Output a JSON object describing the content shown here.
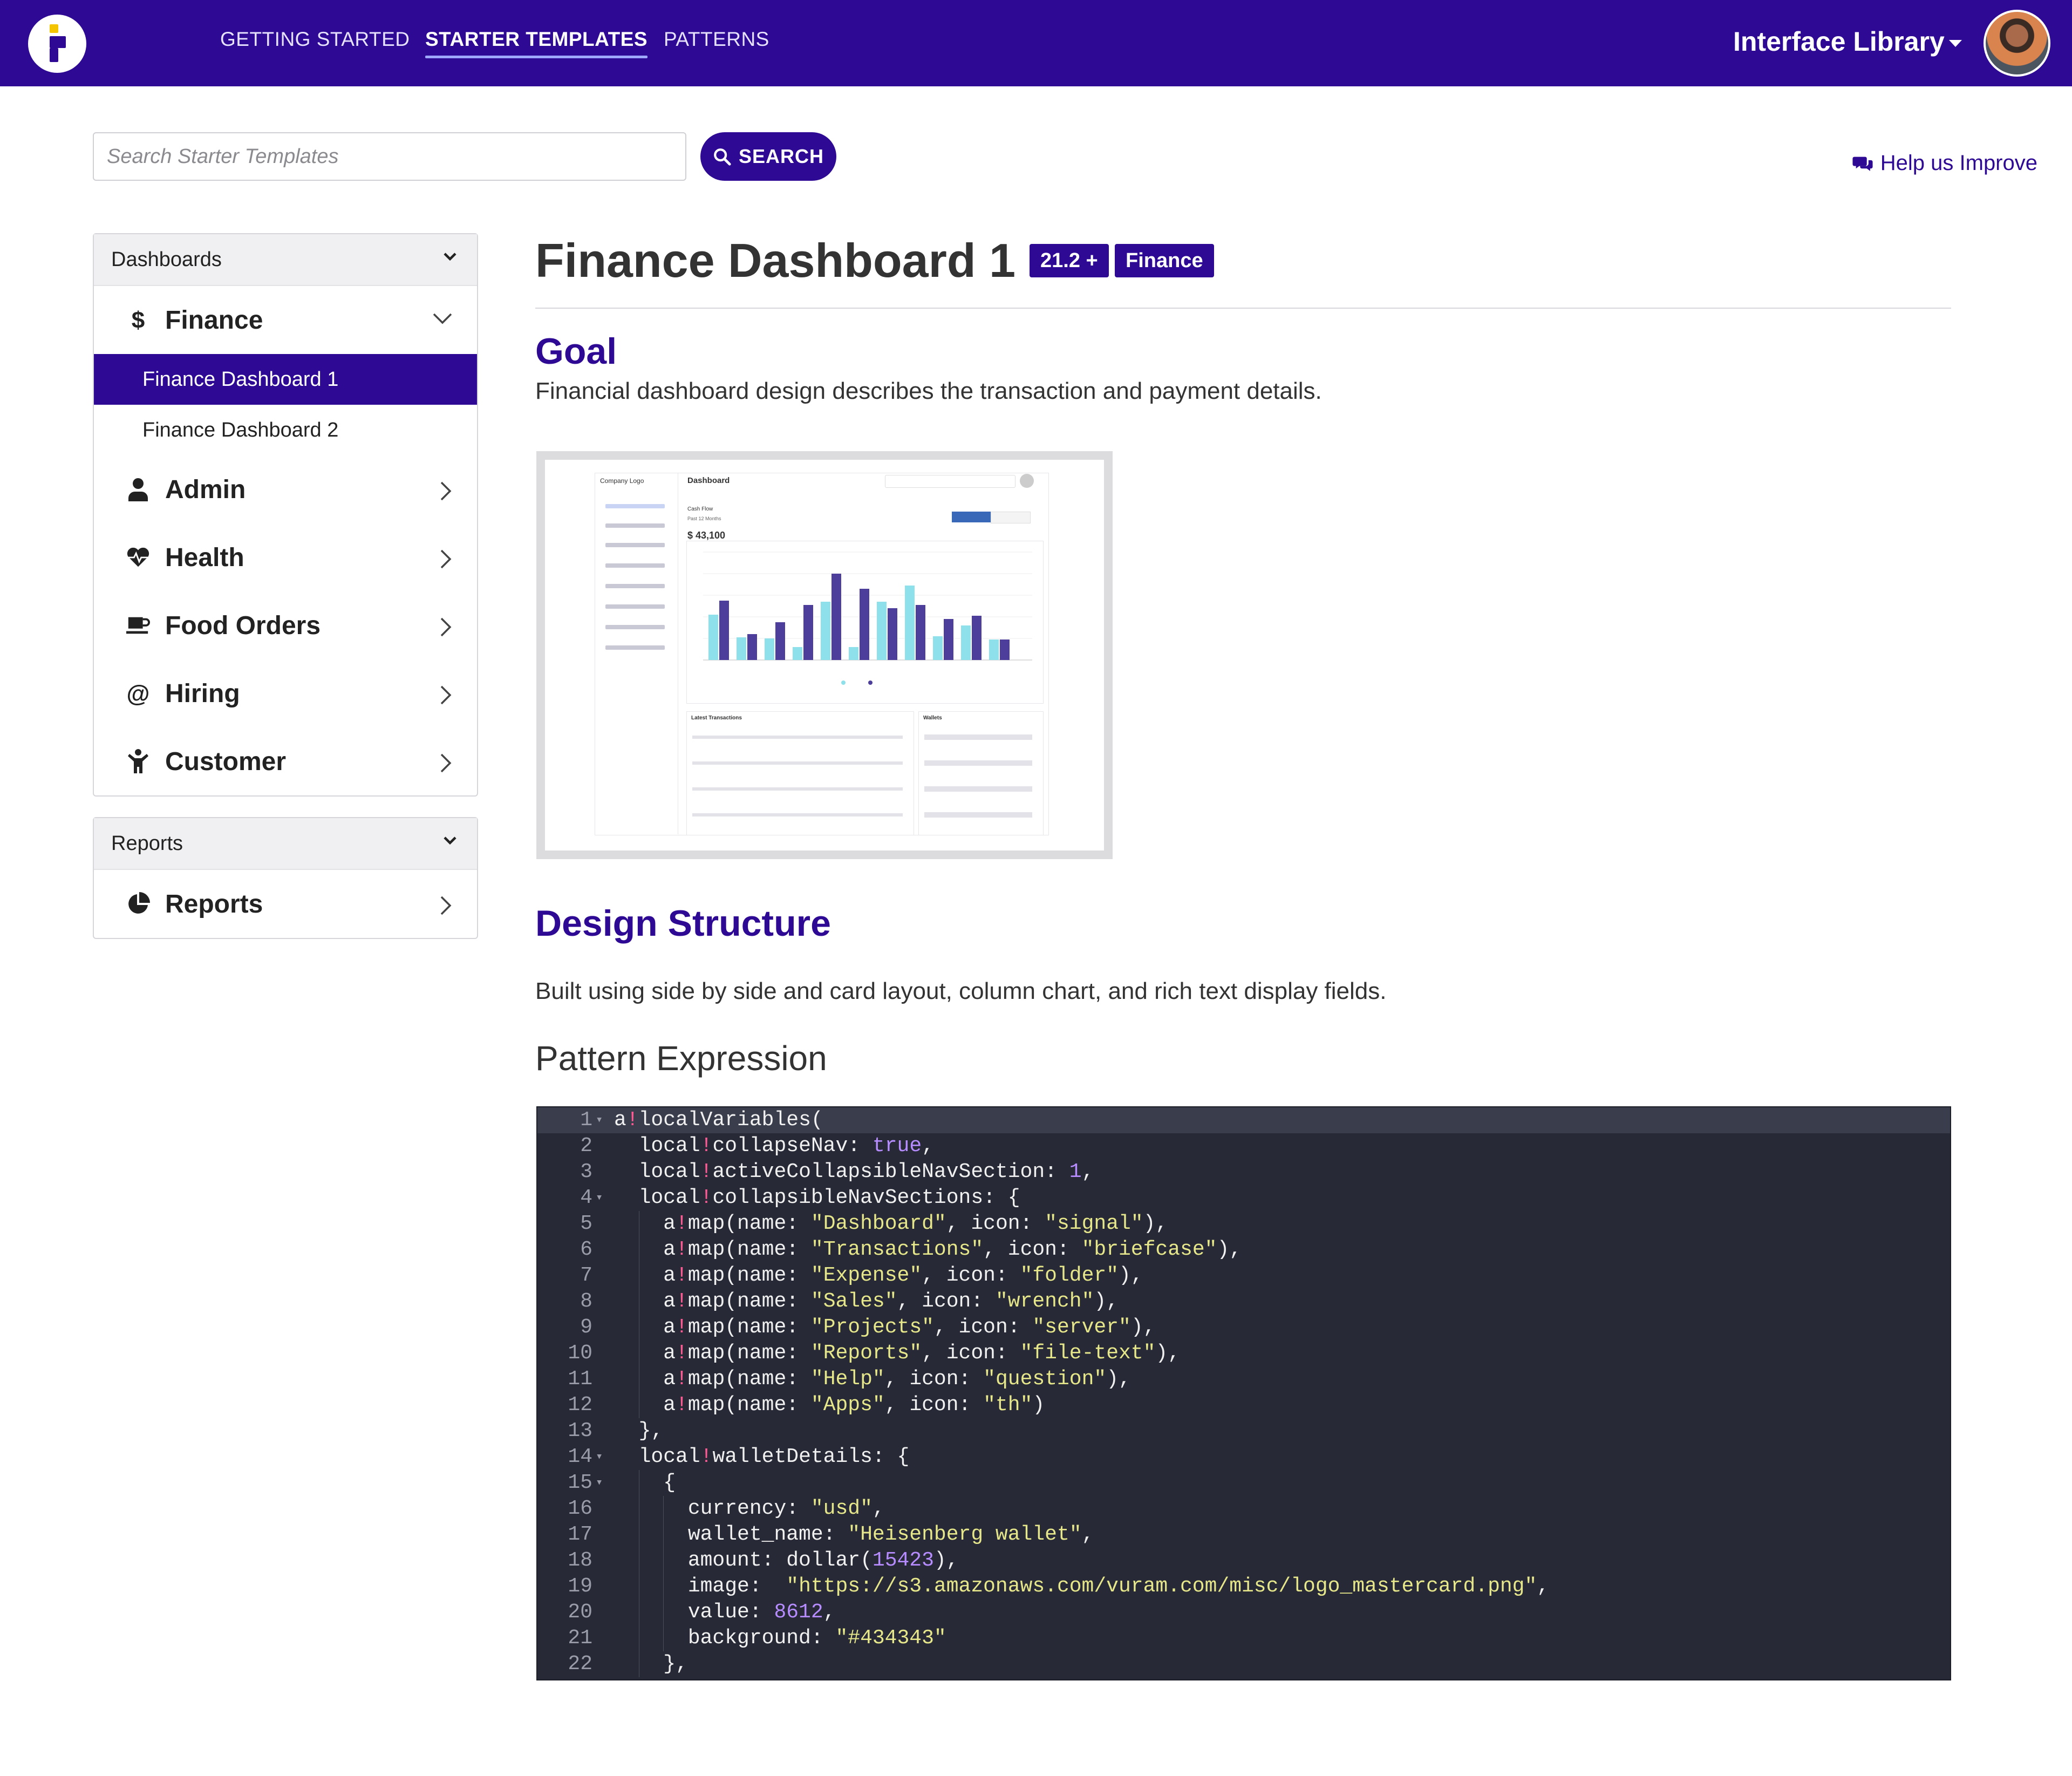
{
  "nav": {
    "links": [
      "GETTING STARTED",
      "STARTER TEMPLATES",
      "PATTERNS"
    ],
    "active_index": 1,
    "library_label": "Interface Library",
    "avatar_icon": "user-avatar"
  },
  "search": {
    "placeholder": "Search Starter Templates",
    "button_label": "SEARCH",
    "help_label": "Help us Improve"
  },
  "sidebar": {
    "sections": [
      {
        "header": "Dashboards",
        "categories": [
          {
            "label": "Finance",
            "icon": "dollar-icon",
            "expanded": true,
            "items": [
              "Finance Dashboard 1",
              "Finance Dashboard 2"
            ],
            "active_item": 0
          },
          {
            "label": "Admin",
            "icon": "user-icon",
            "expanded": false
          },
          {
            "label": "Health",
            "icon": "heartbeat-icon",
            "expanded": false
          },
          {
            "label": "Food Orders",
            "icon": "coffee-icon",
            "expanded": false
          },
          {
            "label": "Hiring",
            "icon": "at-icon",
            "expanded": false
          },
          {
            "label": "Customer",
            "icon": "child-icon",
            "expanded": false
          }
        ]
      },
      {
        "header": "Reports",
        "categories": [
          {
            "label": "Reports",
            "icon": "pie-chart-icon",
            "expanded": false
          }
        ]
      }
    ]
  },
  "main": {
    "title": "Finance Dashboard 1",
    "badges": [
      "21.2 +",
      "Finance"
    ],
    "goal_heading": "Goal",
    "goal_text": "Financial dashboard design describes the transaction and payment details.",
    "preview": {
      "company_logo": "Company Logo",
      "dashboard_title": "Dashboard",
      "cash_flow_label": "Cash Flow",
      "cash_flow_period": "Past 12 Months",
      "amount": "$ 43,100",
      "latest_transactions": "Latest Transactions",
      "wallets": "Wallets"
    },
    "design_heading": "Design Structure",
    "design_text": "Built using side by side and card layout, column chart, and rich text display fields.",
    "pattern_heading": "Pattern Expression"
  },
  "code": {
    "lines": [
      "a!localVariables(",
      "  local!collapseNav: true,",
      "  local!activeCollapsibleNavSection: 1,",
      "  local!collapsibleNavSections: {",
      "    a!map(name: \"Dashboard\", icon: \"signal\"),",
      "    a!map(name: \"Transactions\", icon: \"briefcase\"),",
      "    a!map(name: \"Expense\", icon: \"folder\"),",
      "    a!map(name: \"Sales\", icon: \"wrench\"),",
      "    a!map(name: \"Projects\", icon: \"server\"),",
      "    a!map(name: \"Reports\", icon: \"file-text\"),",
      "    a!map(name: \"Help\", icon: \"question\"),",
      "    a!map(name: \"Apps\", icon: \"th\")",
      "  },",
      "  local!walletDetails: {",
      "    {",
      "      currency: \"usd\",",
      "      wallet_name: \"Heisenberg wallet\",",
      "      amount: dollar(15423),",
      "      image:  \"https://s3.amazonaws.com/vuram.com/misc/logo_mastercard.png\",",
      "      value: 8612,",
      "      background: \"#434343\"",
      "    },"
    ],
    "fold_lines": [
      1,
      4,
      14,
      15
    ]
  },
  "colors": {
    "brand": "#2e0a94",
    "code_bg": "#272a36",
    "code_string": "#e6e68a",
    "code_number": "#b68cff",
    "code_bang": "#ff5a93"
  }
}
